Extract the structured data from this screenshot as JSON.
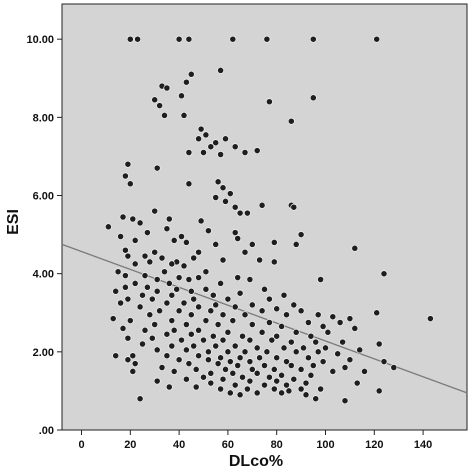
{
  "chart_data": {
    "type": "scatter",
    "title": "",
    "xlabel": "DLco%",
    "ylabel": "ESI",
    "xlim": [
      -8,
      158
    ],
    "ylim": [
      0,
      10.9
    ],
    "x_ticks": [
      {
        "value": 0,
        "label": "0"
      },
      {
        "value": 20,
        "label": "20"
      },
      {
        "value": 40,
        "label": "40"
      },
      {
        "value": 60,
        "label": "60"
      },
      {
        "value": 80,
        "label": "80"
      },
      {
        "value": 100,
        "label": "100"
      },
      {
        "value": 120,
        "label": "120"
      },
      {
        "value": 140,
        "label": "140"
      }
    ],
    "y_ticks": [
      {
        "value": 0,
        "label": ".00"
      },
      {
        "value": 2,
        "label": "2.00"
      },
      {
        "value": 4,
        "label": "4.00"
      },
      {
        "value": 6,
        "label": "6.00"
      },
      {
        "value": 8,
        "label": "8.00"
      },
      {
        "value": 10,
        "label": "10.00"
      }
    ],
    "grid": false,
    "fit_line": {
      "x": [
        -8,
        158
      ],
      "y": [
        4.75,
        0.95
      ]
    },
    "colors": {
      "plot_background": "#d4d4d4",
      "point": "#1e1e1e",
      "fit_line": "#7a7a7a"
    },
    "points": [
      [
        20,
        10
      ],
      [
        23,
        10
      ],
      [
        40,
        10
      ],
      [
        44,
        10
      ],
      [
        62,
        10
      ],
      [
        76,
        10
      ],
      [
        95,
        10
      ],
      [
        121,
        10
      ],
      [
        45,
        9.1
      ],
      [
        57,
        9.2
      ],
      [
        43,
        8.9
      ],
      [
        33,
        8.8
      ],
      [
        35,
        8.75
      ],
      [
        41,
        8.55
      ],
      [
        30,
        8.45
      ],
      [
        95,
        8.5
      ],
      [
        77,
        8.4
      ],
      [
        32,
        8.3
      ],
      [
        34,
        8.05
      ],
      [
        42,
        8.05
      ],
      [
        86,
        7.9
      ],
      [
        49,
        7.7
      ],
      [
        51,
        7.55
      ],
      [
        48,
        7.45
      ],
      [
        59,
        7.45
      ],
      [
        55,
        7.35
      ],
      [
        53,
        7.25
      ],
      [
        63,
        7.25
      ],
      [
        72,
        7.15
      ],
      [
        44,
        7.1
      ],
      [
        50,
        7.1
      ],
      [
        57,
        7.05
      ],
      [
        67,
        7.1
      ],
      [
        19,
        6.8
      ],
      [
        31,
        6.7
      ],
      [
        18,
        6.5
      ],
      [
        56,
        6.35
      ],
      [
        44,
        6.3
      ],
      [
        20,
        6.3
      ],
      [
        58,
        6.2
      ],
      [
        61,
        6.05
      ],
      [
        55,
        5.95
      ],
      [
        59,
        5.85
      ],
      [
        74,
        5.75
      ],
      [
        86,
        5.75
      ],
      [
        87,
        5.7
      ],
      [
        63,
        5.7
      ],
      [
        30,
        5.6
      ],
      [
        65,
        5.55
      ],
      [
        68,
        5.55
      ],
      [
        17,
        5.45
      ],
      [
        21,
        5.4
      ],
      [
        36,
        5.4
      ],
      [
        49,
        5.35
      ],
      [
        24,
        5.3
      ],
      [
        11,
        5.2
      ],
      [
        35,
        5.15
      ],
      [
        52,
        5.1
      ],
      [
        27,
        5.05
      ],
      [
        63,
        5.05
      ],
      [
        90,
        5.0
      ],
      [
        16,
        4.95
      ],
      [
        41,
        4.95
      ],
      [
        64,
        4.9
      ],
      [
        22,
        4.85
      ],
      [
        38,
        4.85
      ],
      [
        43,
        4.8
      ],
      [
        79,
        4.8
      ],
      [
        55,
        4.75
      ],
      [
        70,
        4.75
      ],
      [
        88,
        4.75
      ],
      [
        112,
        4.65
      ],
      [
        18,
        4.6
      ],
      [
        30,
        4.55
      ],
      [
        48,
        4.55
      ],
      [
        67,
        4.55
      ],
      [
        19,
        4.45
      ],
      [
        26,
        4.45
      ],
      [
        33,
        4.4
      ],
      [
        46,
        4.4
      ],
      [
        58,
        4.35
      ],
      [
        73,
        4.35
      ],
      [
        28,
        4.3
      ],
      [
        39,
        4.3
      ],
      [
        79,
        4.3
      ],
      [
        22,
        4.25
      ],
      [
        37,
        4.25
      ],
      [
        42,
        4.2
      ],
      [
        15,
        4.05
      ],
      [
        34,
        4.05
      ],
      [
        51,
        4.05
      ],
      [
        124,
        4.0
      ],
      [
        18,
        3.95
      ],
      [
        26,
        3.95
      ],
      [
        40,
        3.9
      ],
      [
        48,
        3.9
      ],
      [
        64,
        3.9
      ],
      [
        31,
        3.85
      ],
      [
        44,
        3.85
      ],
      [
        69,
        3.85
      ],
      [
        98,
        3.85
      ],
      [
        22,
        3.75
      ],
      [
        36,
        3.75
      ],
      [
        57,
        3.75
      ],
      [
        18,
        3.65
      ],
      [
        27,
        3.65
      ],
      [
        39,
        3.6
      ],
      [
        51,
        3.6
      ],
      [
        75,
        3.6
      ],
      [
        14,
        3.55
      ],
      [
        31,
        3.55
      ],
      [
        45,
        3.55
      ],
      [
        65,
        3.5
      ],
      [
        25,
        3.45
      ],
      [
        37,
        3.45
      ],
      [
        54,
        3.45
      ],
      [
        83,
        3.45
      ],
      [
        19,
        3.35
      ],
      [
        29,
        3.35
      ],
      [
        46,
        3.35
      ],
      [
        60,
        3.35
      ],
      [
        77,
        3.35
      ],
      [
        16,
        3.25
      ],
      [
        35,
        3.25
      ],
      [
        42,
        3.25
      ],
      [
        55,
        3.2
      ],
      [
        70,
        3.2
      ],
      [
        87,
        3.2
      ],
      [
        24,
        3.15
      ],
      [
        48,
        3.15
      ],
      [
        63,
        3.15
      ],
      [
        80,
        3.1
      ],
      [
        32,
        3.05
      ],
      [
        40,
        3.05
      ],
      [
        53,
        3.05
      ],
      [
        74,
        3.05
      ],
      [
        90,
        3.05
      ],
      [
        121,
        3.0
      ],
      [
        28,
        2.95
      ],
      [
        45,
        2.95
      ],
      [
        58,
        2.95
      ],
      [
        67,
        2.95
      ],
      [
        84,
        2.95
      ],
      [
        97,
        2.95
      ],
      [
        103,
        2.9
      ],
      [
        110,
        2.85
      ],
      [
        143,
        2.85
      ],
      [
        13,
        2.85
      ],
      [
        20,
        2.8
      ],
      [
        37,
        2.8
      ],
      [
        51,
        2.8
      ],
      [
        62,
        2.8
      ],
      [
        77,
        2.75
      ],
      [
        93,
        2.75
      ],
      [
        106,
        2.75
      ],
      [
        30,
        2.7
      ],
      [
        43,
        2.7
      ],
      [
        56,
        2.7
      ],
      [
        70,
        2.7
      ],
      [
        82,
        2.65
      ],
      [
        99,
        2.65
      ],
      [
        112,
        2.6
      ],
      [
        17,
        2.6
      ],
      [
        26,
        2.55
      ],
      [
        38,
        2.55
      ],
      [
        48,
        2.55
      ],
      [
        60,
        2.5
      ],
      [
        74,
        2.5
      ],
      [
        88,
        2.5
      ],
      [
        101,
        2.5
      ],
      [
        35,
        2.45
      ],
      [
        45,
        2.45
      ],
      [
        54,
        2.4
      ],
      [
        66,
        2.4
      ],
      [
        80,
        2.4
      ],
      [
        94,
        2.4
      ],
      [
        19,
        2.35
      ],
      [
        29,
        2.35
      ],
      [
        41,
        2.3
      ],
      [
        50,
        2.3
      ],
      [
        58,
        2.3
      ],
      [
        69,
        2.3
      ],
      [
        78,
        2.3
      ],
      [
        86,
        2.25
      ],
      [
        96,
        2.25
      ],
      [
        107,
        2.25
      ],
      [
        122,
        2.2
      ],
      [
        25,
        2.2
      ],
      [
        37,
        2.15
      ],
      [
        46,
        2.15
      ],
      [
        55,
        2.15
      ],
      [
        63,
        2.15
      ],
      [
        72,
        2.1
      ],
      [
        83,
        2.1
      ],
      [
        91,
        2.1
      ],
      [
        100,
        2.1
      ],
      [
        114,
        2.05
      ],
      [
        31,
        2.05
      ],
      [
        43,
        2.05
      ],
      [
        52,
        2.0
      ],
      [
        60,
        2.0
      ],
      [
        67,
        2.0
      ],
      [
        76,
        2.0
      ],
      [
        88,
        2.0
      ],
      [
        97,
        2.0
      ],
      [
        105,
        1.95
      ],
      [
        14,
        1.9
      ],
      [
        21,
        1.9
      ],
      [
        35,
        1.9
      ],
      [
        48,
        1.9
      ],
      [
        57,
        1.85
      ],
      [
        65,
        1.85
      ],
      [
        73,
        1.85
      ],
      [
        80,
        1.85
      ],
      [
        93,
        1.85
      ],
      [
        110,
        1.8
      ],
      [
        19,
        1.8
      ],
      [
        40,
        1.8
      ],
      [
        52,
        1.8
      ],
      [
        61,
        1.75
      ],
      [
        69,
        1.75
      ],
      [
        84,
        1.75
      ],
      [
        99,
        1.75
      ],
      [
        124,
        1.75
      ],
      [
        22,
        1.7
      ],
      [
        44,
        1.7
      ],
      [
        56,
        1.7
      ],
      [
        64,
        1.65
      ],
      [
        75,
        1.65
      ],
      [
        86,
        1.65
      ],
      [
        95,
        1.65
      ],
      [
        108,
        1.6
      ],
      [
        128,
        1.6
      ],
      [
        33,
        1.6
      ],
      [
        47,
        1.55
      ],
      [
        59,
        1.55
      ],
      [
        70,
        1.55
      ],
      [
        79,
        1.55
      ],
      [
        90,
        1.55
      ],
      [
        103,
        1.5
      ],
      [
        116,
        1.5
      ],
      [
        21,
        1.5
      ],
      [
        38,
        1.5
      ],
      [
        53,
        1.45
      ],
      [
        62,
        1.45
      ],
      [
        72,
        1.45
      ],
      [
        82,
        1.4
      ],
      [
        94,
        1.4
      ],
      [
        50,
        1.35
      ],
      [
        66,
        1.35
      ],
      [
        77,
        1.35
      ],
      [
        87,
        1.3
      ],
      [
        43,
        1.3
      ],
      [
        58,
        1.3
      ],
      [
        69,
        1.25
      ],
      [
        80,
        1.25
      ],
      [
        31,
        1.25
      ],
      [
        92,
        1.2
      ],
      [
        113,
        1.2
      ],
      [
        53,
        1.2
      ],
      [
        63,
        1.15
      ],
      [
        75,
        1.15
      ],
      [
        84,
        1.15
      ],
      [
        36,
        1.1
      ],
      [
        47,
        1.1
      ],
      [
        57,
        1.05
      ],
      [
        68,
        1.05
      ],
      [
        79,
        1.05
      ],
      [
        90,
        1.05
      ],
      [
        98,
        1.05
      ],
      [
        85,
        1.0
      ],
      [
        122,
        1.0
      ],
      [
        61,
        0.95
      ],
      [
        72,
        0.95
      ],
      [
        82,
        0.95
      ],
      [
        65,
        0.9
      ],
      [
        92,
        0.9
      ],
      [
        24,
        0.8
      ],
      [
        96,
        0.8
      ],
      [
        108,
        0.75
      ]
    ]
  }
}
